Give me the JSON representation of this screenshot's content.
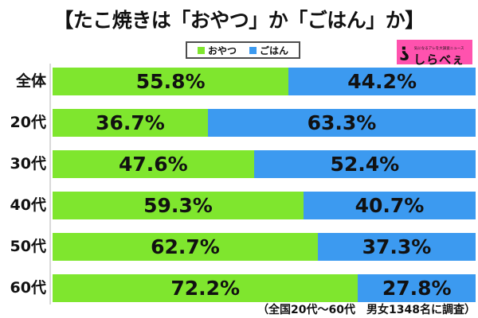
{
  "title": "【たこ焼きは「おやつ」か「ごはん」か】",
  "legend": {
    "items": [
      {
        "key": "snack",
        "label": "おやつ",
        "color": "#7fe62e"
      },
      {
        "key": "meal",
        "label": "ごはん",
        "color": "#3c9af0"
      }
    ]
  },
  "logo": {
    "tagline": "気になるアレを大調査ニュース",
    "text": "しらべぇ",
    "bg_color": "#ff52ae"
  },
  "footnote": "（全国20代～60代　男女1348名に調査）",
  "colors": {
    "snack_green": "#7fe62e",
    "meal_blue": "#3c9af0",
    "axis_gray": "#d9d9d9",
    "logo_pink": "#ff52ae"
  },
  "chart_data": {
    "type": "bar",
    "orientation": "horizontal-stacked",
    "title": "【たこ焼きは「おやつ」か「ごはん」か】",
    "categories": [
      "全体",
      "20代",
      "30代",
      "40代",
      "50代",
      "60代"
    ],
    "series": [
      {
        "key": "snack",
        "name": "おやつ",
        "color": "#7fe62e",
        "values": [
          55.8,
          36.7,
          47.6,
          59.3,
          62.7,
          72.2
        ]
      },
      {
        "key": "meal",
        "name": "ごはん",
        "color": "#3c9af0",
        "values": [
          44.2,
          63.3,
          52.4,
          40.7,
          37.3,
          27.8
        ]
      }
    ],
    "value_suffix": "%",
    "xlim": [
      0,
      100
    ],
    "grid": false,
    "legend_position": "top-center",
    "data_labels": "inside-center",
    "footnote": "（全国20代～60代　男女1348名に調査）"
  }
}
